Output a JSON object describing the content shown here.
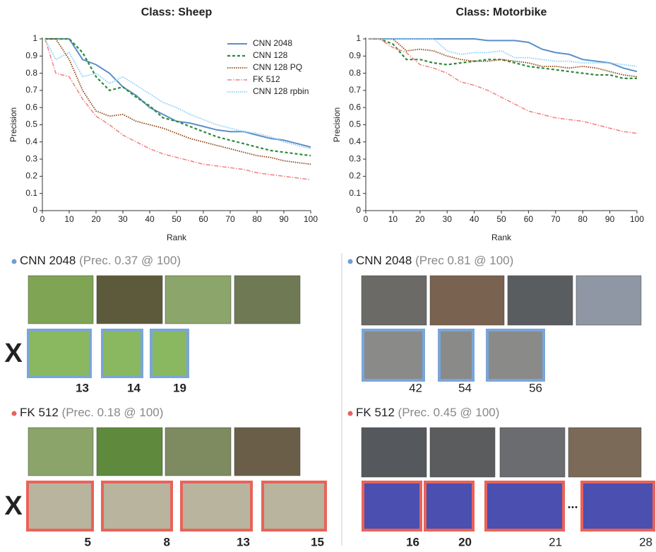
{
  "chart_data": [
    {
      "type": "line",
      "title": "Class: Sheep",
      "xlabel": "Rank",
      "ylabel": "Precision",
      "x": [
        1,
        5,
        10,
        15,
        20,
        25,
        30,
        35,
        40,
        45,
        50,
        55,
        60,
        65,
        70,
        75,
        80,
        85,
        90,
        95,
        100
      ],
      "xlim": [
        0,
        100
      ],
      "ylim": [
        0,
        1
      ],
      "xticks": [
        0,
        10,
        20,
        30,
        40,
        50,
        60,
        70,
        80,
        90,
        100
      ],
      "yticks": [
        0,
        0.1,
        0.2,
        0.3,
        0.4,
        0.5,
        0.6,
        0.7,
        0.8,
        0.9,
        1
      ],
      "legend": "upper right",
      "series": [
        {
          "name": "CNN 2048",
          "color": "#5b8fc9",
          "style": "solid",
          "values": [
            1,
            1,
            1,
            0.88,
            0.85,
            0.8,
            0.72,
            0.67,
            0.6,
            0.56,
            0.52,
            0.51,
            0.49,
            0.47,
            0.46,
            0.46,
            0.44,
            0.42,
            0.41,
            0.39,
            0.37
          ]
        },
        {
          "name": "CNN 128",
          "color": "#2e8b3a",
          "style": "dashed",
          "values": [
            1,
            1,
            1,
            0.92,
            0.78,
            0.7,
            0.72,
            0.66,
            0.61,
            0.54,
            0.52,
            0.49,
            0.46,
            0.43,
            0.41,
            0.39,
            0.37,
            0.35,
            0.34,
            0.33,
            0.32
          ]
        },
        {
          "name": "CNN 128 PQ",
          "color": "#8b4513",
          "style": "dotted",
          "values": [
            1,
            1,
            0.88,
            0.7,
            0.58,
            0.55,
            0.56,
            0.52,
            0.5,
            0.48,
            0.45,
            0.42,
            0.4,
            0.38,
            0.36,
            0.34,
            0.32,
            0.31,
            0.29,
            0.28,
            0.27
          ]
        },
        {
          "name": "FK 512",
          "color": "#f08080",
          "style": "dashdot",
          "values": [
            1,
            0.8,
            0.78,
            0.65,
            0.55,
            0.5,
            0.44,
            0.4,
            0.36,
            0.33,
            0.31,
            0.29,
            0.27,
            0.26,
            0.25,
            0.24,
            0.22,
            0.21,
            0.2,
            0.19,
            0.18
          ]
        },
        {
          "name": "CNN 128 rpbin",
          "color": "#87cefa",
          "style": "dotted",
          "values": [
            1,
            0.88,
            0.92,
            0.78,
            0.8,
            0.74,
            0.78,
            0.73,
            0.68,
            0.63,
            0.6,
            0.56,
            0.53,
            0.5,
            0.48,
            0.46,
            0.45,
            0.43,
            0.4,
            0.38,
            0.36
          ]
        }
      ]
    },
    {
      "type": "line",
      "title": "Class: Motorbike",
      "xlabel": "Rank",
      "ylabel": "Precision",
      "x": [
        1,
        5,
        10,
        15,
        20,
        25,
        30,
        35,
        40,
        45,
        50,
        55,
        60,
        65,
        70,
        75,
        80,
        85,
        90,
        95,
        100
      ],
      "xlim": [
        0,
        100
      ],
      "ylim": [
        0,
        1
      ],
      "xticks": [
        0,
        10,
        20,
        30,
        40,
        50,
        60,
        70,
        80,
        90,
        100
      ],
      "yticks": [
        0,
        0.1,
        0.2,
        0.3,
        0.4,
        0.5,
        0.6,
        0.7,
        0.8,
        0.9,
        1
      ],
      "series": [
        {
          "color": "#5b8fc9",
          "style": "solid",
          "values": [
            1,
            1,
            1,
            1,
            1,
            1,
            1,
            1,
            1,
            0.99,
            0.99,
            0.99,
            0.98,
            0.94,
            0.92,
            0.91,
            0.88,
            0.87,
            0.86,
            0.83,
            0.81
          ]
        },
        {
          "color": "#2e8b3a",
          "style": "dashed",
          "values": [
            1,
            1,
            0.97,
            0.88,
            0.88,
            0.86,
            0.85,
            0.86,
            0.87,
            0.88,
            0.88,
            0.86,
            0.84,
            0.83,
            0.82,
            0.81,
            0.8,
            0.79,
            0.79,
            0.77,
            0.77
          ]
        },
        {
          "color": "#8b4513",
          "style": "dotted",
          "values": [
            1,
            1,
            1,
            0.93,
            0.94,
            0.93,
            0.9,
            0.88,
            0.87,
            0.87,
            0.88,
            0.87,
            0.86,
            0.84,
            0.84,
            0.83,
            0.84,
            0.83,
            0.81,
            0.79,
            0.78
          ]
        },
        {
          "color": "#f08080",
          "style": "dashdot",
          "values": [
            1,
            1,
            0.95,
            0.92,
            0.85,
            0.83,
            0.8,
            0.75,
            0.73,
            0.7,
            0.66,
            0.62,
            0.58,
            0.56,
            0.54,
            0.53,
            0.52,
            0.5,
            0.48,
            0.46,
            0.45
          ]
        },
        {
          "color": "#87cefa",
          "style": "dotted",
          "values": [
            1,
            1,
            1,
            1,
            1,
            1,
            0.93,
            0.91,
            0.92,
            0.92,
            0.93,
            0.89,
            0.89,
            0.88,
            0.87,
            0.87,
            0.86,
            0.86,
            0.86,
            0.85,
            0.84
          ]
        }
      ]
    }
  ],
  "panels": [
    {
      "method": "CNN 2048",
      "detail": "(Prec. 0.37 @ 100)",
      "mark": "X",
      "ranks": [
        {
          "rank": 13,
          "bold": true
        },
        {
          "rank": 14,
          "bold": true
        },
        {
          "rank": 19,
          "bold": true
        }
      ]
    },
    {
      "method": "CNN 2048",
      "detail": "(Prec 0.81 @ 100)",
      "ranks": [
        {
          "rank": 42,
          "bold": false
        },
        {
          "rank": 54,
          "bold": false
        },
        {
          "rank": 56,
          "bold": false
        }
      ]
    },
    {
      "method": "FK 512",
      "detail": "(Prec. 0.18 @ 100)",
      "mark": "X",
      "ranks": [
        {
          "rank": 5,
          "bold": true
        },
        {
          "rank": 8,
          "bold": true
        },
        {
          "rank": 13,
          "bold": true
        },
        {
          "rank": 15,
          "bold": true
        }
      ]
    },
    {
      "method": "FK 512",
      "detail": "(Prec. 0.45 @ 100)",
      "ellipsis": "...",
      "ranks": [
        {
          "rank": 16,
          "bold": true
        },
        {
          "rank": 20,
          "bold": true
        },
        {
          "rank": 21,
          "bold": false
        },
        {
          "rank": 28,
          "bold": false
        }
      ]
    }
  ]
}
